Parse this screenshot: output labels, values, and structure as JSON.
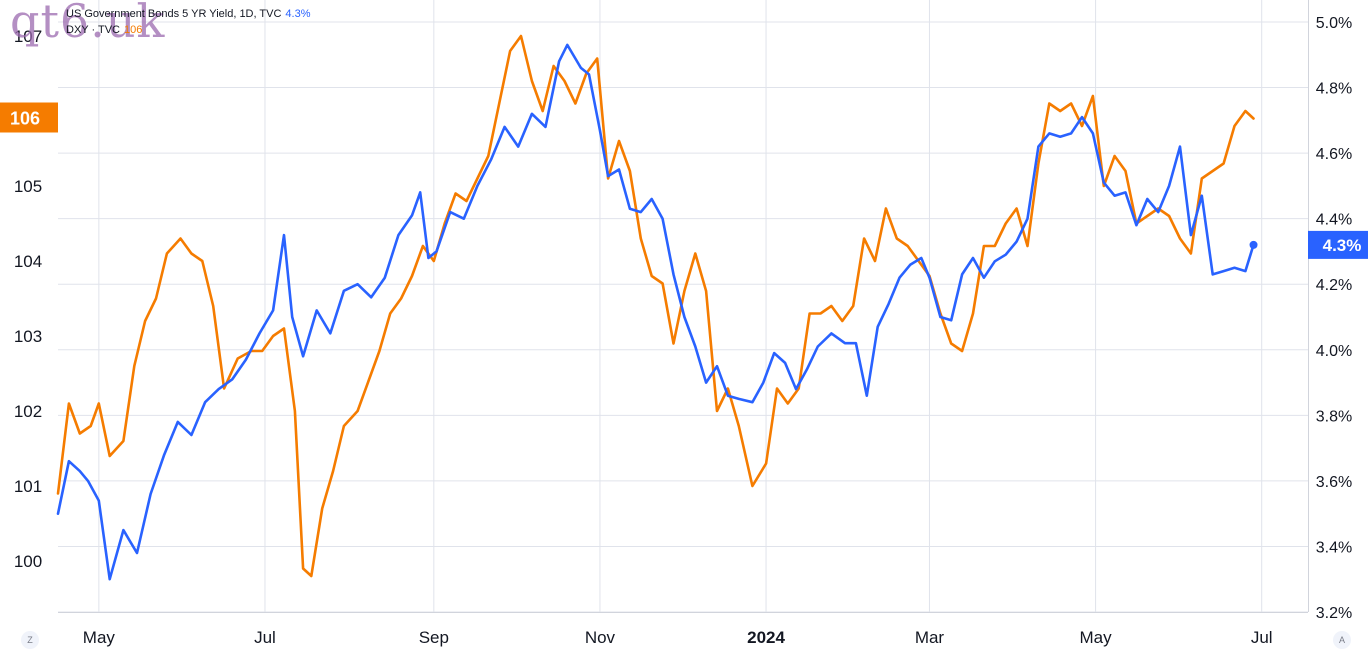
{
  "watermark": "qt6.uk",
  "legend": {
    "series1_text": "US Government Bonds 5 YR Yield, 1D, TVC",
    "series1_value": "4.3%",
    "series2_text": "DXY · TVC",
    "series2_value": "106"
  },
  "chart_data": {
    "type": "line",
    "title": "",
    "x_ticks": [
      {
        "date": "2023-05-01",
        "label": "May"
      },
      {
        "date": "2023-07-01",
        "label": "Jul"
      },
      {
        "date": "2023-09-01",
        "label": "Sep"
      },
      {
        "date": "2023-11-01",
        "label": "Nov"
      },
      {
        "date": "2024-01-01",
        "label": "2024",
        "bold": true
      },
      {
        "date": "2024-03-01",
        "label": "Mar"
      },
      {
        "date": "2024-05-01",
        "label": "May"
      },
      {
        "date": "2024-07-01",
        "label": "Jul"
      }
    ],
    "xlim": [
      "2023-04-16",
      "2024-07-18"
    ],
    "left_axis": {
      "ticks": [
        100,
        101,
        102,
        103,
        104,
        105,
        106,
        107
      ],
      "ylim": [
        99.35,
        107.5
      ]
    },
    "right_axis": {
      "ticks": [
        "3.2%",
        "3.4%",
        "3.6%",
        "3.8%",
        "4.0%",
        "4.2%",
        "4.4%",
        "4.6%",
        "4.8%",
        "5.0%"
      ],
      "ylim": [
        3.2,
        5.0
      ]
    },
    "grid": true,
    "series": [
      {
        "name": "US Government Bonds 5 YR Yield, 1D, TVC",
        "axis": "right",
        "color": "#2962ff",
        "last_label": "4.3%",
        "points": [
          [
            "2023-04-16",
            3.5
          ],
          [
            "2023-04-20",
            3.66
          ],
          [
            "2023-04-24",
            3.63
          ],
          [
            "2023-04-27",
            3.6
          ],
          [
            "2023-05-01",
            3.54
          ],
          [
            "2023-05-05",
            3.3
          ],
          [
            "2023-05-10",
            3.45
          ],
          [
            "2023-05-15",
            3.38
          ],
          [
            "2023-05-20",
            3.56
          ],
          [
            "2023-05-25",
            3.68
          ],
          [
            "2023-05-30",
            3.78
          ],
          [
            "2023-06-04",
            3.74
          ],
          [
            "2023-06-09",
            3.84
          ],
          [
            "2023-06-14",
            3.88
          ],
          [
            "2023-06-19",
            3.91
          ],
          [
            "2023-06-24",
            3.97
          ],
          [
            "2023-06-29",
            4.05
          ],
          [
            "2023-07-04",
            4.12
          ],
          [
            "2023-07-08",
            4.35
          ],
          [
            "2023-07-11",
            4.1
          ],
          [
            "2023-07-15",
            3.98
          ],
          [
            "2023-07-20",
            4.12
          ],
          [
            "2023-07-25",
            4.05
          ],
          [
            "2023-07-30",
            4.18
          ],
          [
            "2023-08-04",
            4.2
          ],
          [
            "2023-08-09",
            4.16
          ],
          [
            "2023-08-14",
            4.22
          ],
          [
            "2023-08-19",
            4.35
          ],
          [
            "2023-08-24",
            4.41
          ],
          [
            "2023-08-27",
            4.48
          ],
          [
            "2023-08-30",
            4.28
          ],
          [
            "2023-09-02",
            4.3
          ],
          [
            "2023-09-07",
            4.42
          ],
          [
            "2023-09-12",
            4.4
          ],
          [
            "2023-09-17",
            4.5
          ],
          [
            "2023-09-22",
            4.58
          ],
          [
            "2023-09-27",
            4.68
          ],
          [
            "2023-10-02",
            4.62
          ],
          [
            "2023-10-07",
            4.72
          ],
          [
            "2023-10-12",
            4.68
          ],
          [
            "2023-10-17",
            4.88
          ],
          [
            "2023-10-20",
            4.93
          ],
          [
            "2023-10-25",
            4.86
          ],
          [
            "2023-10-28",
            4.84
          ],
          [
            "2023-11-01",
            4.67
          ],
          [
            "2023-11-04",
            4.53
          ],
          [
            "2023-11-08",
            4.55
          ],
          [
            "2023-11-12",
            4.43
          ],
          [
            "2023-11-16",
            4.42
          ],
          [
            "2023-11-20",
            4.46
          ],
          [
            "2023-11-24",
            4.4
          ],
          [
            "2023-11-28",
            4.23
          ],
          [
            "2023-12-02",
            4.1
          ],
          [
            "2023-12-06",
            4.01
          ],
          [
            "2023-12-10",
            3.9
          ],
          [
            "2023-12-14",
            3.95
          ],
          [
            "2023-12-18",
            3.86
          ],
          [
            "2023-12-22",
            3.85
          ],
          [
            "2023-12-27",
            3.84
          ],
          [
            "2023-12-31",
            3.9
          ],
          [
            "2024-01-04",
            3.99
          ],
          [
            "2024-01-08",
            3.96
          ],
          [
            "2024-01-12",
            3.88
          ],
          [
            "2024-01-16",
            3.94
          ],
          [
            "2024-01-20",
            4.01
          ],
          [
            "2024-01-25",
            4.05
          ],
          [
            "2024-01-30",
            4.02
          ],
          [
            "2024-02-03",
            4.02
          ],
          [
            "2024-02-07",
            3.86
          ],
          [
            "2024-02-11",
            4.07
          ],
          [
            "2024-02-15",
            4.14
          ],
          [
            "2024-02-19",
            4.22
          ],
          [
            "2024-02-23",
            4.26
          ],
          [
            "2024-02-27",
            4.28
          ],
          [
            "2024-03-01",
            4.22
          ],
          [
            "2024-03-05",
            4.1
          ],
          [
            "2024-03-09",
            4.09
          ],
          [
            "2024-03-13",
            4.23
          ],
          [
            "2024-03-17",
            4.28
          ],
          [
            "2024-03-21",
            4.22
          ],
          [
            "2024-03-25",
            4.27
          ],
          [
            "2024-03-29",
            4.29
          ],
          [
            "2024-04-02",
            4.33
          ],
          [
            "2024-04-06",
            4.4
          ],
          [
            "2024-04-10",
            4.62
          ],
          [
            "2024-04-14",
            4.66
          ],
          [
            "2024-04-18",
            4.65
          ],
          [
            "2024-04-22",
            4.66
          ],
          [
            "2024-04-26",
            4.71
          ],
          [
            "2024-04-30",
            4.66
          ],
          [
            "2024-05-04",
            4.51
          ],
          [
            "2024-05-08",
            4.47
          ],
          [
            "2024-05-12",
            4.48
          ],
          [
            "2024-05-16",
            4.38
          ],
          [
            "2024-05-20",
            4.46
          ],
          [
            "2024-05-24",
            4.42
          ],
          [
            "2024-05-28",
            4.5
          ],
          [
            "2024-06-01",
            4.62
          ],
          [
            "2024-06-05",
            4.35
          ],
          [
            "2024-06-09",
            4.47
          ],
          [
            "2024-06-13",
            4.23
          ],
          [
            "2024-06-17",
            4.24
          ],
          [
            "2024-06-21",
            4.25
          ],
          [
            "2024-06-25",
            4.24
          ],
          [
            "2024-06-28",
            4.32
          ]
        ]
      },
      {
        "name": "DXY · TVC",
        "axis": "left",
        "color": "#f57c00",
        "last_label": "106",
        "points": [
          [
            "2023-04-16",
            100.9
          ],
          [
            "2023-04-20",
            102.1
          ],
          [
            "2023-04-24",
            101.7
          ],
          [
            "2023-04-28",
            101.8
          ],
          [
            "2023-05-01",
            102.1
          ],
          [
            "2023-05-05",
            101.4
          ],
          [
            "2023-05-10",
            101.6
          ],
          [
            "2023-05-14",
            102.6
          ],
          [
            "2023-05-18",
            103.2
          ],
          [
            "2023-05-22",
            103.5
          ],
          [
            "2023-05-26",
            104.1
          ],
          [
            "2023-05-31",
            104.3
          ],
          [
            "2023-06-04",
            104.1
          ],
          [
            "2023-06-08",
            104.0
          ],
          [
            "2023-06-12",
            103.4
          ],
          [
            "2023-06-16",
            102.3
          ],
          [
            "2023-06-21",
            102.7
          ],
          [
            "2023-06-26",
            102.8
          ],
          [
            "2023-06-30",
            102.8
          ],
          [
            "2023-07-04",
            103.0
          ],
          [
            "2023-07-08",
            103.1
          ],
          [
            "2023-07-12",
            102.0
          ],
          [
            "2023-07-15",
            99.9
          ],
          [
            "2023-07-18",
            99.8
          ],
          [
            "2023-07-22",
            100.7
          ],
          [
            "2023-07-26",
            101.2
          ],
          [
            "2023-07-30",
            101.8
          ],
          [
            "2023-08-04",
            102.0
          ],
          [
            "2023-08-08",
            102.4
          ],
          [
            "2023-08-12",
            102.8
          ],
          [
            "2023-08-16",
            103.3
          ],
          [
            "2023-08-20",
            103.5
          ],
          [
            "2023-08-24",
            103.8
          ],
          [
            "2023-08-28",
            104.2
          ],
          [
            "2023-09-01",
            104.0
          ],
          [
            "2023-09-05",
            104.5
          ],
          [
            "2023-09-09",
            104.9
          ],
          [
            "2023-09-13",
            104.8
          ],
          [
            "2023-09-17",
            105.1
          ],
          [
            "2023-09-21",
            105.4
          ],
          [
            "2023-09-25",
            106.1
          ],
          [
            "2023-09-29",
            106.8
          ],
          [
            "2023-10-03",
            107.0
          ],
          [
            "2023-10-07",
            106.4
          ],
          [
            "2023-10-11",
            106.0
          ],
          [
            "2023-10-15",
            106.6
          ],
          [
            "2023-10-19",
            106.4
          ],
          [
            "2023-10-23",
            106.1
          ],
          [
            "2023-10-27",
            106.5
          ],
          [
            "2023-10-31",
            106.7
          ],
          [
            "2023-11-04",
            105.1
          ],
          [
            "2023-11-08",
            105.6
          ],
          [
            "2023-11-12",
            105.2
          ],
          [
            "2023-11-16",
            104.3
          ],
          [
            "2023-11-20",
            103.8
          ],
          [
            "2023-11-24",
            103.7
          ],
          [
            "2023-11-28",
            102.9
          ],
          [
            "2023-12-02",
            103.6
          ],
          [
            "2023-12-06",
            104.1
          ],
          [
            "2023-12-10",
            103.6
          ],
          [
            "2023-12-14",
            102.0
          ],
          [
            "2023-12-18",
            102.3
          ],
          [
            "2023-12-22",
            101.8
          ],
          [
            "2023-12-27",
            101.0
          ],
          [
            "2024-01-01",
            101.3
          ],
          [
            "2024-01-05",
            102.3
          ],
          [
            "2024-01-09",
            102.1
          ],
          [
            "2024-01-13",
            102.3
          ],
          [
            "2024-01-17",
            103.3
          ],
          [
            "2024-01-21",
            103.3
          ],
          [
            "2024-01-25",
            103.4
          ],
          [
            "2024-01-29",
            103.2
          ],
          [
            "2024-02-02",
            103.4
          ],
          [
            "2024-02-06",
            104.3
          ],
          [
            "2024-02-10",
            104.0
          ],
          [
            "2024-02-14",
            104.7
          ],
          [
            "2024-02-18",
            104.3
          ],
          [
            "2024-02-22",
            104.2
          ],
          [
            "2024-02-26",
            104.0
          ],
          [
            "2024-03-01",
            103.8
          ],
          [
            "2024-03-05",
            103.3
          ],
          [
            "2024-03-09",
            102.9
          ],
          [
            "2024-03-13",
            102.8
          ],
          [
            "2024-03-17",
            103.3
          ],
          [
            "2024-03-21",
            104.2
          ],
          [
            "2024-03-25",
            104.2
          ],
          [
            "2024-03-29",
            104.5
          ],
          [
            "2024-04-02",
            104.7
          ],
          [
            "2024-04-06",
            104.2
          ],
          [
            "2024-04-10",
            105.3
          ],
          [
            "2024-04-14",
            106.1
          ],
          [
            "2024-04-18",
            106.0
          ],
          [
            "2024-04-22",
            106.1
          ],
          [
            "2024-04-26",
            105.8
          ],
          [
            "2024-04-30",
            106.2
          ],
          [
            "2024-05-04",
            105.0
          ],
          [
            "2024-05-08",
            105.4
          ],
          [
            "2024-05-12",
            105.2
          ],
          [
            "2024-05-16",
            104.5
          ],
          [
            "2024-05-20",
            104.6
          ],
          [
            "2024-05-24",
            104.7
          ],
          [
            "2024-05-28",
            104.6
          ],
          [
            "2024-06-01",
            104.3
          ],
          [
            "2024-06-05",
            104.1
          ],
          [
            "2024-06-09",
            105.1
          ],
          [
            "2024-06-13",
            105.2
          ],
          [
            "2024-06-17",
            105.3
          ],
          [
            "2024-06-21",
            105.8
          ],
          [
            "2024-06-25",
            106.0
          ],
          [
            "2024-06-28",
            105.9
          ]
        ]
      }
    ]
  },
  "corner_left": "Z",
  "corner_right": "A"
}
